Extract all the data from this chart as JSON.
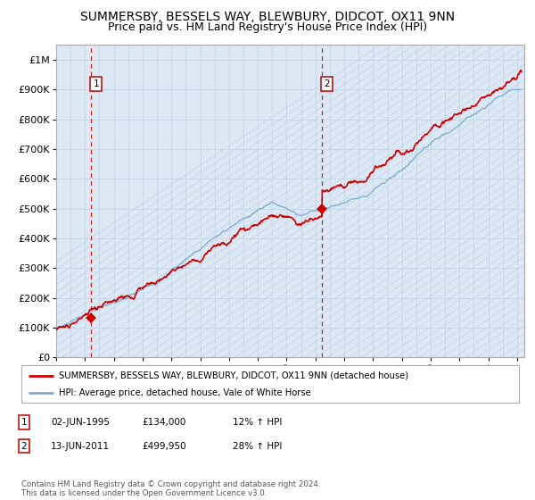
{
  "title": "SUMMERSBY, BESSELS WAY, BLEWBURY, DIDCOT, OX11 9NN",
  "subtitle": "Price paid vs. HM Land Registry's House Price Index (HPI)",
  "ylim": [
    0,
    1050000
  ],
  "xlim_start": 1993.0,
  "xlim_end": 2025.5,
  "yticks": [
    0,
    100000,
    200000,
    300000,
    400000,
    500000,
    600000,
    700000,
    800000,
    900000,
    1000000
  ],
  "ytick_labels": [
    "£0",
    "£100K",
    "£200K",
    "£300K",
    "£400K",
    "£500K",
    "£600K",
    "£700K",
    "£800K",
    "£900K",
    "£1M"
  ],
  "sale1_date": 1995.42,
  "sale1_price": 134000,
  "sale1_label": "1",
  "sale2_date": 2011.45,
  "sale2_price": 499950,
  "sale2_label": "2",
  "property_color": "#cc0000",
  "hpi_color": "#7aadcf",
  "background_color": "#dde8f5",
  "hatch_color": "#c8d8eb",
  "grid_color": "#b8cde0",
  "legend_entry1": "SUMMERSBY, BESSELS WAY, BLEWBURY, DIDCOT, OX11 9NN (detached house)",
  "legend_entry2": "HPI: Average price, detached house, Vale of White Horse",
  "table_row1": [
    "1",
    "02-JUN-1995",
    "£134,000",
    "12% ↑ HPI"
  ],
  "table_row2": [
    "2",
    "13-JUN-2011",
    "£499,950",
    "28% ↑ HPI"
  ],
  "footnote": "Contains HM Land Registry data © Crown copyright and database right 2024.\nThis data is licensed under the Open Government Licence v3.0.",
  "title_fontsize": 10,
  "subtitle_fontsize": 9,
  "tick_fontsize": 8
}
